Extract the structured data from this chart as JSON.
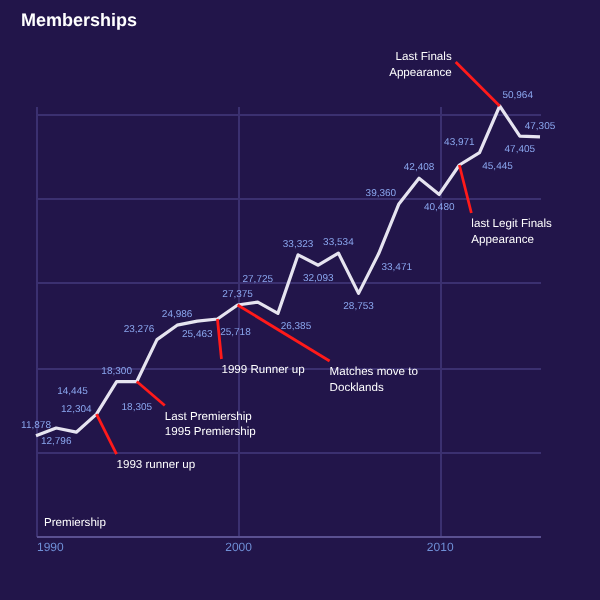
{
  "chart_data": {
    "type": "line",
    "title": "Memberships",
    "x": [
      1990,
      1991,
      1992,
      1993,
      1994,
      1995,
      1996,
      1997,
      1998,
      1999,
      2000,
      2001,
      2002,
      2003,
      2004,
      2005,
      2006,
      2007,
      2008,
      2009,
      2010,
      2011,
      2012,
      2013,
      2014,
      2015
    ],
    "series": [
      {
        "color": "#e6e4f0",
        "values": [
          11878,
          12796,
          12304,
          14445,
          18300,
          18305,
          23276,
          24986,
          25463,
          25718,
          27375,
          27725,
          26385,
          33323,
          32093,
          33534,
          28753,
          33471,
          39360,
          42408,
          40480,
          43971,
          45445,
          50964,
          47405,
          47305
        ],
        "value_labels": [
          "11,878",
          "12,796",
          "12,304",
          "14,445",
          "18,300",
          "18,305",
          "23,276",
          "24,986",
          "25,463",
          "25,718",
          "27,375",
          "27,725",
          "26,385",
          "33,323",
          "32,093",
          "33,534",
          "28,753",
          "33,471",
          "39,360",
          "42,408",
          "40,480",
          "43,971",
          "45,445",
          "50,964",
          "47,405",
          "47,305"
        ]
      }
    ],
    "xlim": [
      1990,
      2015
    ],
    "xticks": [
      1990,
      2000,
      2010
    ],
    "tick_labels": "x",
    "grid": true,
    "marker": "none",
    "annotations": [
      {
        "text": "1993 runner up",
        "x": 1993,
        "y": 14445
      },
      {
        "text": "Last Premiership\n1995 Premiership",
        "x": 1995,
        "y": 18305
      },
      {
        "text": "1999 Runner up",
        "x": 1999,
        "y": 25718
      },
      {
        "text": "Matches move to\nDocklands",
        "x": 2000,
        "y": 27375
      },
      {
        "text": "Last Finals\nAppearance",
        "x": 2013,
        "y": 50964
      },
      {
        "text": "last Legit Finals\nAppearance",
        "x": 2011,
        "y": 43971
      },
      "Premiership"
    ]
  }
}
